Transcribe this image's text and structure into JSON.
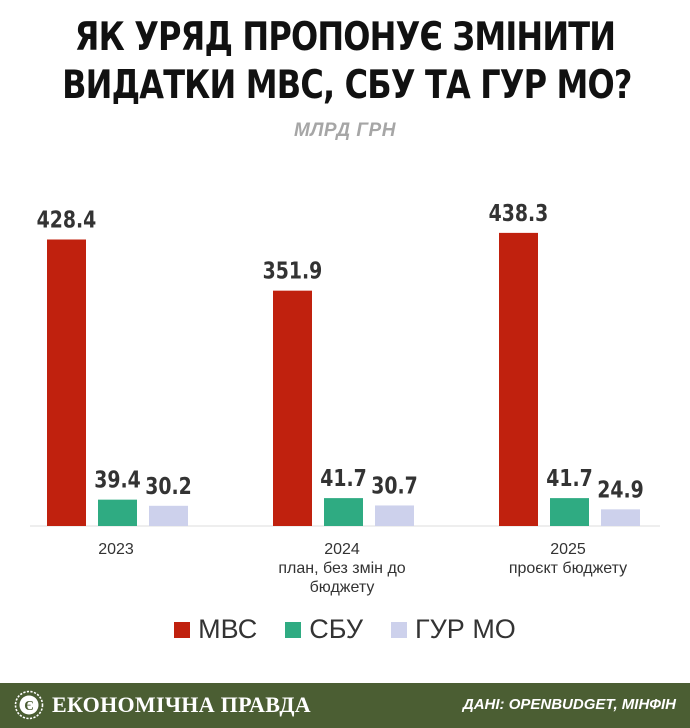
{
  "header": {
    "title_line1": "ЯК УРЯД ПРОПОНУЄ ЗМІНИТИ",
    "title_line2": "ВИДАТКИ МВС, СБУ ТА ГУР МО?",
    "subtitle": "МЛРД ГРН"
  },
  "chart_data": {
    "type": "bar",
    "title": "ЯК УРЯД ПРОПОНУЄ ЗМІНИТИ ВИДАТКИ МВС, СБУ ТА ГУР МО?",
    "subtitle": "МЛРД ГРН",
    "xlabel": "",
    "ylabel": "",
    "ylim": [
      0,
      460
    ],
    "grid": false,
    "legend_position": "bottom",
    "categories": [
      [
        "2023"
      ],
      [
        "2024",
        "план, без змін до",
        "бюджету"
      ],
      [
        "2025",
        "проєкт бюджету"
      ]
    ],
    "series": [
      {
        "name": "МВС",
        "color": "#c0210e",
        "values": [
          428.4,
          351.9,
          438.3
        ]
      },
      {
        "name": "СБУ",
        "color": "#2fab82",
        "values": [
          39.4,
          41.7,
          41.7
        ]
      },
      {
        "name": "ГУР МО",
        "color": "#cdd1ec",
        "values": [
          30.2,
          30.7,
          24.9
        ]
      }
    ]
  },
  "footer": {
    "brand": "ЕКОНОМІЧНА ПРАВДА",
    "source": "ДАНІ: OPENBUDGET, МІНФІН",
    "background": "#4b5e33"
  }
}
